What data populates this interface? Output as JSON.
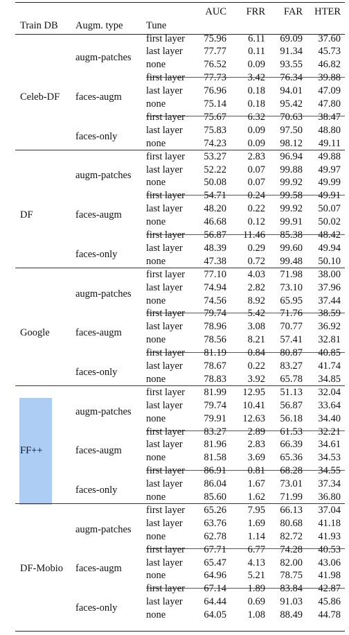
{
  "headers": {
    "auc": "AUC",
    "frr": "FRR",
    "far": "FAR",
    "hter": "HTER",
    "train_db": "Train DB",
    "augm_type": "Augm. type",
    "tune": "Tune"
  },
  "highlight_color": "#aecdf5",
  "groups": [
    {
      "train_db": "Celeb-DF",
      "highlighted": false,
      "subgroups": [
        {
          "augm": "augm-patches",
          "rows": [
            {
              "tune": "first layer",
              "auc": "75.96",
              "frr": "6.11",
              "far": "69.09",
              "hter": "37.60"
            },
            {
              "tune": "last layer",
              "auc": "77.77",
              "frr": "0.11",
              "far": "91.34",
              "hter": "45.73"
            },
            {
              "tune": "none",
              "auc": "76.52",
              "frr": "0.09",
              "far": "93.55",
              "hter": "46.82"
            }
          ]
        },
        {
          "augm": "faces-augm",
          "rows": [
            {
              "tune": "first layer",
              "auc": "77.73",
              "frr": "3.42",
              "far": "76.34",
              "hter": "39.88"
            },
            {
              "tune": "last layer",
              "auc": "76.96",
              "frr": "0.18",
              "far": "94.01",
              "hter": "47.09"
            },
            {
              "tune": "none",
              "auc": "75.14",
              "frr": "0.18",
              "far": "95.42",
              "hter": "47.80"
            }
          ]
        },
        {
          "augm": "faces-only",
          "rows": [
            {
              "tune": "first layer",
              "auc": "75.67",
              "frr": "6.32",
              "far": "70.63",
              "hter": "38.47"
            },
            {
              "tune": "last layer",
              "auc": "75.83",
              "frr": "0.09",
              "far": "97.50",
              "hter": "48.80"
            },
            {
              "tune": "none",
              "auc": "74.23",
              "frr": "0.09",
              "far": "98.12",
              "hter": "49.11"
            }
          ]
        }
      ]
    },
    {
      "train_db": "DF",
      "highlighted": false,
      "subgroups": [
        {
          "augm": "augm-patches",
          "rows": [
            {
              "tune": "first layer",
              "auc": "53.27",
              "frr": "2.83",
              "far": "96.94",
              "hter": "49.88"
            },
            {
              "tune": "last layer",
              "auc": "52.22",
              "frr": "0.07",
              "far": "99.88",
              "hter": "49.97"
            },
            {
              "tune": "none",
              "auc": "50.08",
              "frr": "0.07",
              "far": "99.92",
              "hter": "49.99"
            }
          ]
        },
        {
          "augm": "faces-augm",
          "rows": [
            {
              "tune": "first layer",
              "auc": "54.71",
              "frr": "0.24",
              "far": "99.58",
              "hter": "49.91"
            },
            {
              "tune": "last layer",
              "auc": "48.20",
              "frr": "0.22",
              "far": "99.92",
              "hter": "50.07"
            },
            {
              "tune": "none",
              "auc": "46.68",
              "frr": "0.12",
              "far": "99.91",
              "hter": "50.02"
            }
          ]
        },
        {
          "augm": "faces-only",
          "rows": [
            {
              "tune": "first layer",
              "auc": "56.87",
              "frr": "11.46",
              "far": "85.38",
              "hter": "48.42"
            },
            {
              "tune": "last layer",
              "auc": "48.39",
              "frr": "0.29",
              "far": "99.60",
              "hter": "49.94"
            },
            {
              "tune": "none",
              "auc": "47.38",
              "frr": "0.72",
              "far": "99.48",
              "hter": "50.10"
            }
          ]
        }
      ]
    },
    {
      "train_db": "Google",
      "highlighted": false,
      "subgroups": [
        {
          "augm": "augm-patches",
          "rows": [
            {
              "tune": "first layer",
              "auc": "77.10",
              "frr": "4.03",
              "far": "71.98",
              "hter": "38.00"
            },
            {
              "tune": "last layer",
              "auc": "74.94",
              "frr": "2.82",
              "far": "73.10",
              "hter": "37.96"
            },
            {
              "tune": "none",
              "auc": "74.56",
              "frr": "8.92",
              "far": "65.95",
              "hter": "37.44"
            }
          ]
        },
        {
          "augm": "faces-augm",
          "rows": [
            {
              "tune": "first layer",
              "auc": "79.74",
              "frr": "5.42",
              "far": "71.76",
              "hter": "38.59"
            },
            {
              "tune": "last layer",
              "auc": "78.96",
              "frr": "3.08",
              "far": "70.77",
              "hter": "36.92"
            },
            {
              "tune": "none",
              "auc": "78.56",
              "frr": "8.21",
              "far": "57.41",
              "hter": "32.81"
            }
          ]
        },
        {
          "augm": "faces-only",
          "rows": [
            {
              "tune": "first layer",
              "auc": "81.19",
              "frr": "0.84",
              "far": "80.87",
              "hter": "40.85"
            },
            {
              "tune": "last layer",
              "auc": "78.67",
              "frr": "0.22",
              "far": "83.27",
              "hter": "41.74"
            },
            {
              "tune": "none",
              "auc": "78.83",
              "frr": "3.92",
              "far": "65.78",
              "hter": "34.85"
            }
          ]
        }
      ]
    },
    {
      "train_db": "FF++",
      "highlighted": true,
      "subgroups": [
        {
          "augm": "augm-patches",
          "rows": [
            {
              "tune": "first layer",
              "auc": "81.99",
              "frr": "12.95",
              "far": "51.13",
              "hter": "32.04"
            },
            {
              "tune": "last layer",
              "auc": "79.74",
              "frr": "10.41",
              "far": "56.87",
              "hter": "33.64"
            },
            {
              "tune": "none",
              "auc": "79.91",
              "frr": "12.63",
              "far": "56.18",
              "hter": "34.40"
            }
          ]
        },
        {
          "augm": "faces-augm",
          "rows": [
            {
              "tune": "first layer",
              "auc": "83.27",
              "frr": "2.89",
              "far": "61.53",
              "hter": "32.21"
            },
            {
              "tune": "last layer",
              "auc": "81.96",
              "frr": "2.83",
              "far": "66.39",
              "hter": "34.61"
            },
            {
              "tune": "none",
              "auc": "81.58",
              "frr": "3.69",
              "far": "65.36",
              "hter": "34.53"
            }
          ]
        },
        {
          "augm": "faces-only",
          "rows": [
            {
              "tune": "first layer",
              "auc": "86.91",
              "frr": "0.81",
              "far": "68.28",
              "hter": "34.55"
            },
            {
              "tune": "last layer",
              "auc": "86.04",
              "frr": "1.67",
              "far": "73.01",
              "hter": "37.34"
            },
            {
              "tune": "none",
              "auc": "85.60",
              "frr": "1.62",
              "far": "71.99",
              "hter": "36.80"
            }
          ]
        }
      ]
    },
    {
      "train_db": "DF-Mobio",
      "highlighted": false,
      "subgroups": [
        {
          "augm": "augm-patches",
          "rows": [
            {
              "tune": "first layer",
              "auc": "65.26",
              "frr": "7.95",
              "far": "66.13",
              "hter": "37.04"
            },
            {
              "tune": "last layer",
              "auc": "63.76",
              "frr": "1.69",
              "far": "80.68",
              "hter": "41.18"
            },
            {
              "tune": "none",
              "auc": "62.78",
              "frr": "1.14",
              "far": "82.72",
              "hter": "41.93"
            }
          ]
        },
        {
          "augm": "faces-augm",
          "rows": [
            {
              "tune": "first layer",
              "auc": "67.71",
              "frr": "6.77",
              "far": "74.28",
              "hter": "40.53"
            },
            {
              "tune": "last layer",
              "auc": "65.47",
              "frr": "4.13",
              "far": "82.00",
              "hter": "43.06"
            },
            {
              "tune": "none",
              "auc": "64.96",
              "frr": "5.21",
              "far": "78.75",
              "hter": "41.98"
            }
          ]
        },
        {
          "augm": "faces-only",
          "rows": [
            {
              "tune": "first layer",
              "auc": "67.14",
              "frr": "1.89",
              "far": "83.84",
              "hter": "42.87"
            },
            {
              "tune": "last layer",
              "auc": "64.44",
              "frr": "0.69",
              "far": "91.03",
              "hter": "45.86"
            },
            {
              "tune": "none",
              "auc": "64.05",
              "frr": "1.08",
              "far": "88.49",
              "hter": "44.78"
            }
          ]
        }
      ]
    }
  ]
}
